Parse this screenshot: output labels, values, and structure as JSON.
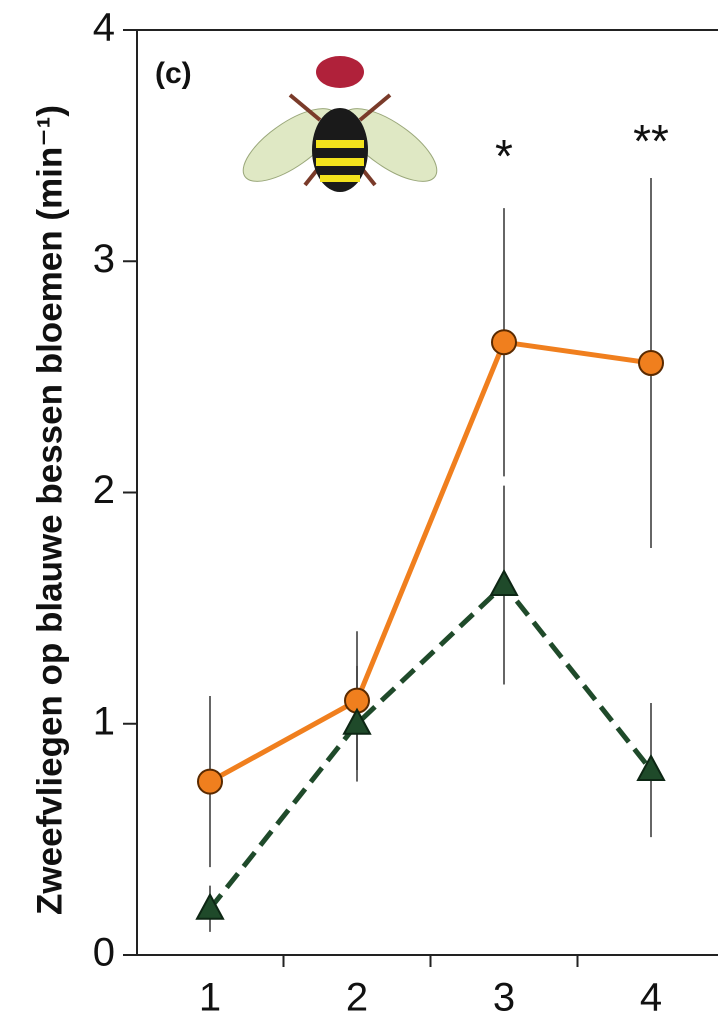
{
  "chart_data": {
    "type": "line",
    "y_label": "Zweefvliegen op blauwe bessen bloemen (min⁻¹)",
    "annotations": [
      "(c)",
      "*",
      "**"
    ],
    "categories": [
      "1",
      "2",
      "3",
      "4"
    ],
    "series": [
      {
        "color": "#f07f1e",
        "marker": "circle",
        "dash": false,
        "values": [
          0.75,
          1.1,
          2.65,
          2.56
        ],
        "errors": [
          0.37,
          0.3,
          0.58,
          0.8
        ]
      },
      {
        "color": "#1f4a2a",
        "marker": "triangle",
        "dash": true,
        "values": [
          0.2,
          1.0,
          1.6,
          0.8
        ],
        "errors": [
          0.1,
          0.25,
          0.43,
          0.29
        ]
      }
    ],
    "ylim": [
      0,
      4
    ],
    "yticks": [
      0,
      1,
      2,
      3,
      4
    ]
  }
}
